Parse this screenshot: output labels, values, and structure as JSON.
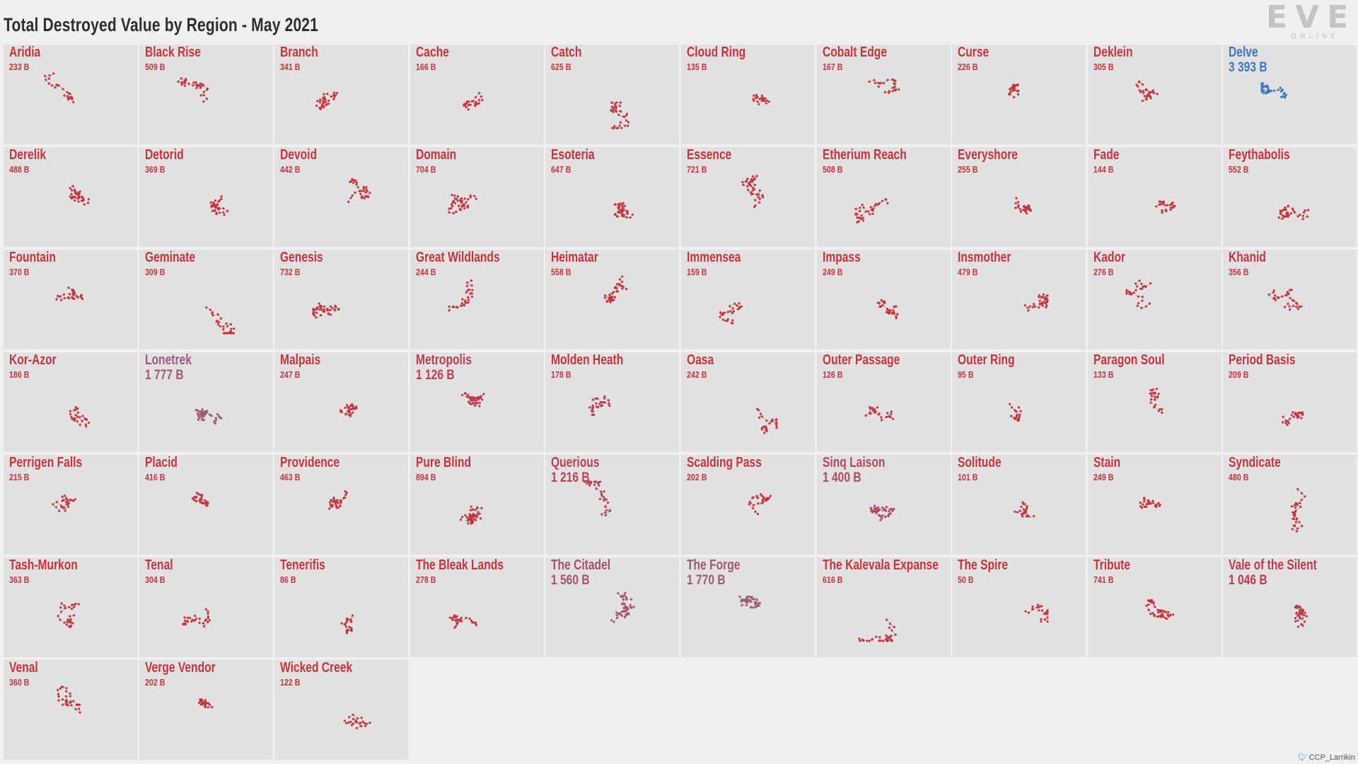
{
  "title": "Total Destroyed Value by Region - May 2021",
  "logo": {
    "text": "EVE",
    "subtext": "ONLINE"
  },
  "credit": {
    "icon": "twitter-bird-icon",
    "handle": "CCP_Larrikin"
  },
  "colors": {
    "low": "#c9333c",
    "mid": "#a05a7a",
    "high": "#3a78c0",
    "tile_bg": "#e1e1e1",
    "page_bg": "#f0f0f0"
  },
  "chart_data": {
    "type": "small-multiples",
    "metric": "Total Destroyed Value",
    "unit": "B",
    "regions": [
      {
        "name": "Aridia",
        "value_label": "233 B",
        "value": 233
      },
      {
        "name": "Black Rise",
        "value_label": "509 B",
        "value": 509
      },
      {
        "name": "Branch",
        "value_label": "341 B",
        "value": 341
      },
      {
        "name": "Cache",
        "value_label": "166 B",
        "value": 166
      },
      {
        "name": "Catch",
        "value_label": "625 B",
        "value": 625
      },
      {
        "name": "Cloud Ring",
        "value_label": "135 B",
        "value": 135
      },
      {
        "name": "Cobalt Edge",
        "value_label": "167 B",
        "value": 167
      },
      {
        "name": "Curse",
        "value_label": "226 B",
        "value": 226
      },
      {
        "name": "Deklein",
        "value_label": "305 B",
        "value": 305
      },
      {
        "name": "Delve",
        "value_label": "3 393 B",
        "value": 3393
      },
      {
        "name": "Derelik",
        "value_label": "488 B",
        "value": 488
      },
      {
        "name": "Detorid",
        "value_label": "369 B",
        "value": 369
      },
      {
        "name": "Devoid",
        "value_label": "442 B",
        "value": 442
      },
      {
        "name": "Domain",
        "value_label": "704 B",
        "value": 704
      },
      {
        "name": "Esoteria",
        "value_label": "647 B",
        "value": 647
      },
      {
        "name": "Essence",
        "value_label": "721 B",
        "value": 721
      },
      {
        "name": "Etherium Reach",
        "value_label": "508 B",
        "value": 508
      },
      {
        "name": "Everyshore",
        "value_label": "255 B",
        "value": 255
      },
      {
        "name": "Fade",
        "value_label": "144 B",
        "value": 144
      },
      {
        "name": "Feythabolis",
        "value_label": "552 B",
        "value": 552
      },
      {
        "name": "Fountain",
        "value_label": "370 B",
        "value": 370
      },
      {
        "name": "Geminate",
        "value_label": "309 B",
        "value": 309
      },
      {
        "name": "Genesis",
        "value_label": "732 B",
        "value": 732
      },
      {
        "name": "Great Wildlands",
        "value_label": "244 B",
        "value": 244
      },
      {
        "name": "Heimatar",
        "value_label": "558 B",
        "value": 558
      },
      {
        "name": "Immensea",
        "value_label": "159 B",
        "value": 159
      },
      {
        "name": "Impass",
        "value_label": "249 B",
        "value": 249
      },
      {
        "name": "Insmother",
        "value_label": "479 B",
        "value": 479
      },
      {
        "name": "Kador",
        "value_label": "276 B",
        "value": 276
      },
      {
        "name": "Khanid",
        "value_label": "356 B",
        "value": 356
      },
      {
        "name": "Kor-Azor",
        "value_label": "186 B",
        "value": 186
      },
      {
        "name": "Lonetrek",
        "value_label": "1 777 B",
        "value": 1777
      },
      {
        "name": "Malpais",
        "value_label": "247 B",
        "value": 247
      },
      {
        "name": "Metropolis",
        "value_label": "1 126 B",
        "value": 1126
      },
      {
        "name": "Molden Heath",
        "value_label": "178 B",
        "value": 178
      },
      {
        "name": "Oasa",
        "value_label": "242 B",
        "value": 242
      },
      {
        "name": "Outer Passage",
        "value_label": "126 B",
        "value": 126
      },
      {
        "name": "Outer Ring",
        "value_label": "95 B",
        "value": 95
      },
      {
        "name": "Paragon Soul",
        "value_label": "133 B",
        "value": 133
      },
      {
        "name": "Period Basis",
        "value_label": "209 B",
        "value": 209
      },
      {
        "name": "Perrigen Falls",
        "value_label": "215 B",
        "value": 215
      },
      {
        "name": "Placid",
        "value_label": "416 B",
        "value": 416
      },
      {
        "name": "Providence",
        "value_label": "463 B",
        "value": 463
      },
      {
        "name": "Pure Blind",
        "value_label": "894 B",
        "value": 894
      },
      {
        "name": "Querious",
        "value_label": "1 216 B",
        "value": 1216
      },
      {
        "name": "Scalding Pass",
        "value_label": "202 B",
        "value": 202
      },
      {
        "name": "Sinq Laison",
        "value_label": "1 400 B",
        "value": 1400
      },
      {
        "name": "Solitude",
        "value_label": "101 B",
        "value": 101
      },
      {
        "name": "Stain",
        "value_label": "249 B",
        "value": 249
      },
      {
        "name": "Syndicate",
        "value_label": "480 B",
        "value": 480
      },
      {
        "name": "Tash-Murkon",
        "value_label": "363 B",
        "value": 363
      },
      {
        "name": "Tenal",
        "value_label": "304 B",
        "value": 304
      },
      {
        "name": "Tenerifis",
        "value_label": "86 B",
        "value": 86
      },
      {
        "name": "The Bleak Lands",
        "value_label": "278 B",
        "value": 278
      },
      {
        "name": "The Citadel",
        "value_label": "1 560 B",
        "value": 1560
      },
      {
        "name": "The Forge",
        "value_label": "1 770 B",
        "value": 1770
      },
      {
        "name": "The Kalevala Expanse",
        "value_label": "616 B",
        "value": 616
      },
      {
        "name": "The Spire",
        "value_label": "50 B",
        "value": 50
      },
      {
        "name": "Tribute",
        "value_label": "741 B",
        "value": 741
      },
      {
        "name": "Vale of the Silent",
        "value_label": "1 046 B",
        "value": 1046
      },
      {
        "name": "Venal",
        "value_label": "360 B",
        "value": 360
      },
      {
        "name": "Verge Vendor",
        "value_label": "202 B",
        "value": 202
      },
      {
        "name": "Wicked Creek",
        "value_label": "122 B",
        "value": 122
      }
    ]
  }
}
